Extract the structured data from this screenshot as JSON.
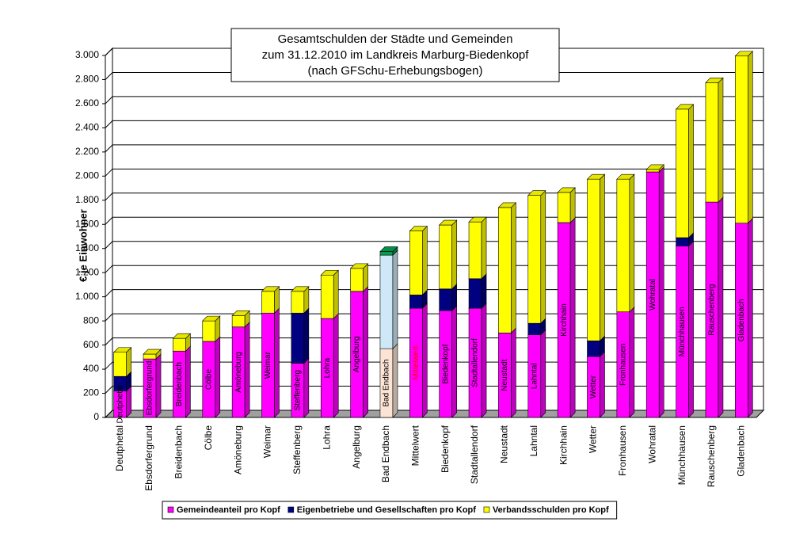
{
  "chart_data": {
    "type": "stacked_bar_3d",
    "title": [
      "Gesamtschulden der Städte und Gemeinden",
      "zum 31.12.2010 im Landkreis Marburg-Biedenkopf",
      "(nach GFSchu-Erhebungsbogen)"
    ],
    "y_label": "€ je Einwohner",
    "categories": [
      "Deutphetal",
      "Ebsdorfergrund",
      "Breidenbach",
      "Cölbe",
      "Amöneburg",
      "Weimar",
      "Steffenberg",
      "Lohra",
      "Angelburg",
      "Bad Endbach",
      "Mittelwert",
      "Biedenkopf",
      "Stadtallendorf",
      "Neustadt",
      "Lahntal",
      "Kirchhain",
      "Wetter",
      "Fronhausen",
      "Wohratal",
      "Münchhausen",
      "Rauschenberg",
      "Gladenbach"
    ],
    "series": [
      {
        "name": "Gemeindeanteil pro Kopf",
        "color": "#ff00ff",
        "values": [
          220,
          485,
          550,
          630,
          750,
          865,
          450,
          820,
          1045,
          570,
          905,
          885,
          905,
          700,
          685,
          1615,
          505,
          875,
          2035,
          1420,
          1785,
          1610
        ]
      },
      {
        "name": "Eigenbetriebe und Gesellschaften pro Kopf",
        "color": "#000080",
        "values": [
          120,
          0,
          0,
          0,
          0,
          0,
          415,
          0,
          0,
          775,
          110,
          180,
          245,
          0,
          95,
          0,
          130,
          0,
          0,
          70,
          0,
          0
        ]
      },
      {
        "name": "Verbandsschulden pro Kopf",
        "color": "#ffff00",
        "values": [
          200,
          40,
          105,
          170,
          95,
          180,
          180,
          360,
          190,
          30,
          530,
          530,
          470,
          1040,
          1060,
          250,
          1340,
          1100,
          20,
          1065,
          990,
          1385
        ]
      }
    ],
    "point_colors": [
      {
        "index": 9,
        "colors": [
          "#fbe4d5",
          "#cfe8f7",
          "#00a050"
        ]
      }
    ],
    "label_colors": [
      {
        "index": 10,
        "color": "#ff0000"
      }
    ],
    "ylim": [
      0,
      3000
    ],
    "yticks": [
      0,
      200,
      400,
      600,
      800,
      {
        "value": 1000,
        "label": "1.000"
      },
      {
        "value": 1200,
        "label": "1.200"
      },
      {
        "value": 1400,
        "label": "1.400"
      },
      {
        "value": 1600,
        "label": "1.600"
      },
      {
        "value": 1800,
        "label": "1.800"
      },
      {
        "value": 2000,
        "label": "2.000"
      },
      {
        "value": 2200,
        "label": "2.200"
      },
      {
        "value": 2400,
        "label": "2.400"
      },
      {
        "value": 2600,
        "label": "2.600"
      },
      {
        "value": 2800,
        "label": "2.800"
      },
      {
        "value": 3000,
        "label": "3.000"
      }
    ],
    "grid": true,
    "legend": "bottom"
  }
}
